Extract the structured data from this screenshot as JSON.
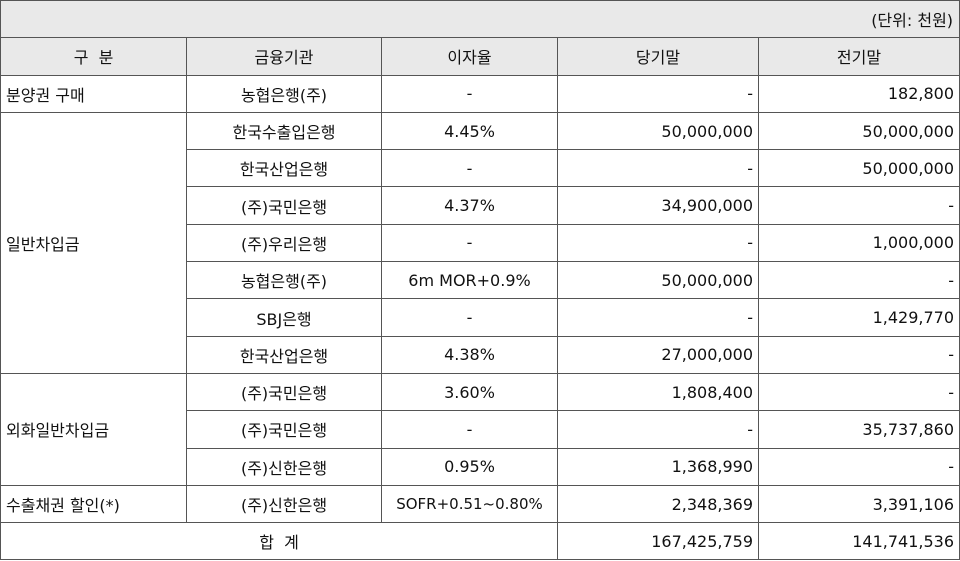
{
  "unit_label": "(단위: 천원)",
  "headers": [
    "구  분",
    "금융기관",
    "이자율",
    "당기말",
    "전기말"
  ],
  "rows": [
    {
      "category": "분양권 구매",
      "institution": "농협은행(주)",
      "rate": "-",
      "current": "-",
      "previous": "182,800"
    },
    {
      "category": "일반차입금",
      "institution": "한국수출입은행",
      "rate": "4.45%",
      "current": "50,000,000",
      "previous": "50,000,000"
    },
    {
      "category": "",
      "institution": "한국산업은행",
      "rate": "-",
      "current": "-",
      "previous": "50,000,000"
    },
    {
      "category": "",
      "institution": "(주)국민은행",
      "rate": "4.37%",
      "current": "34,900,000",
      "previous": "-"
    },
    {
      "category": "",
      "institution": "(주)우리은행",
      "rate": "-",
      "current": "-",
      "previous": "1,000,000"
    },
    {
      "category": "",
      "institution": "농협은행(주)",
      "rate": "6m MOR+0.9%",
      "current": "50,000,000",
      "previous": "-"
    },
    {
      "category": "",
      "institution": "SBJ은행",
      "rate": "-",
      "current": "-",
      "previous": "1,429,770"
    },
    {
      "category": "",
      "institution": "한국산업은행",
      "rate": "4.38%",
      "current": "27,000,000",
      "previous": "-"
    },
    {
      "category": "외화일반차입금",
      "institution": "(주)국민은행",
      "rate": "3.60%",
      "current": "1,808,400",
      "previous": "-"
    },
    {
      "category": "",
      "institution": "(주)국민은행",
      "rate": "-",
      "current": "-",
      "previous": "35,737,860"
    },
    {
      "category": "",
      "institution": "(주)신한은행",
      "rate": "0.95%",
      "current": "1,368,990",
      "previous": "-"
    },
    {
      "category": "수출채권 할인(*)",
      "institution": "(주)신한은행",
      "rate": "SOFR+0.51~0.80%",
      "current": "2,348,369",
      "previous": "3,391,106"
    }
  ],
  "total": {
    "label": "합  계",
    "current": "167,425,759",
    "previous": "141,741,536"
  }
}
